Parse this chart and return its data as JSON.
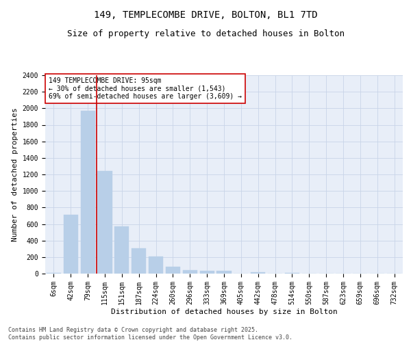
{
  "title1": "149, TEMPLECOMBE DRIVE, BOLTON, BL1 7TD",
  "title2": "Size of property relative to detached houses in Bolton",
  "xlabel": "Distribution of detached houses by size in Bolton",
  "ylabel": "Number of detached properties",
  "categories": [
    "6sqm",
    "42sqm",
    "79sqm",
    "115sqm",
    "151sqm",
    "187sqm",
    "224sqm",
    "260sqm",
    "296sqm",
    "333sqm",
    "369sqm",
    "405sqm",
    "442sqm",
    "478sqm",
    "514sqm",
    "550sqm",
    "587sqm",
    "623sqm",
    "659sqm",
    "696sqm",
    "732sqm"
  ],
  "values": [
    10,
    710,
    1970,
    1240,
    575,
    305,
    205,
    80,
    45,
    35,
    30,
    0,
    20,
    0,
    10,
    0,
    0,
    0,
    0,
    0,
    0
  ],
  "bar_color": "#b8cfe8",
  "bar_edgecolor": "#b8cfe8",
  "vline_x": 2.5,
  "vline_color": "#cc0000",
  "annotation_box_text": "149 TEMPLECOMBE DRIVE: 95sqm\n← 30% of detached houses are smaller (1,543)\n69% of semi-detached houses are larger (3,609) →",
  "annotation_box_color": "#cc0000",
  "annotation_box_facecolor": "white",
  "ylim": [
    0,
    2400
  ],
  "yticks": [
    0,
    200,
    400,
    600,
    800,
    1000,
    1200,
    1400,
    1600,
    1800,
    2000,
    2200,
    2400
  ],
  "grid_color": "#c8d4e8",
  "bg_color": "#e8eef8",
  "footnote": "Contains HM Land Registry data © Crown copyright and database right 2025.\nContains public sector information licensed under the Open Government Licence v3.0.",
  "title1_fontsize": 10,
  "title2_fontsize": 9,
  "xlabel_fontsize": 8,
  "ylabel_fontsize": 8,
  "tick_fontsize": 7,
  "annot_fontsize": 7
}
